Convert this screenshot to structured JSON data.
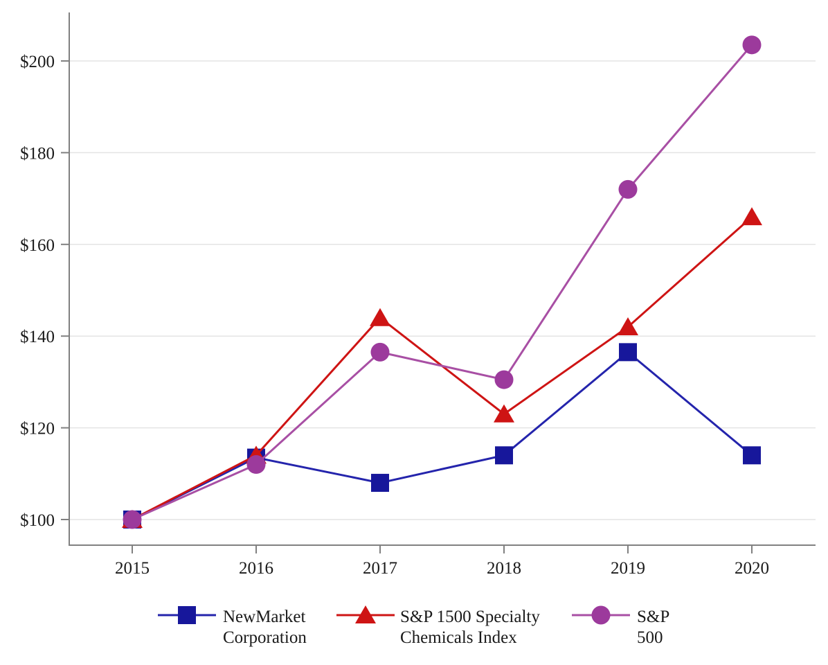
{
  "chart_data": {
    "type": "line",
    "title": "",
    "x_labels": [
      "2015",
      "2016",
      "2017",
      "2018",
      "2019",
      "2020"
    ],
    "y_ticks": [
      100,
      120,
      140,
      160,
      180,
      200
    ],
    "y_tick_labels": [
      "$100",
      "$120",
      "$140",
      "$160",
      "$180",
      "$200"
    ],
    "ylim": [
      94,
      211
    ],
    "grid": true,
    "legend_position": "bottom",
    "series": [
      {
        "name": "NewMarket Corporation",
        "legend_lines": [
          "NewMarket",
          "Corporation"
        ],
        "marker": "square",
        "marker_color": "#17179B",
        "line_color": "#2424AC",
        "values": [
          100,
          113.5,
          108,
          114,
          136.5,
          114
        ]
      },
      {
        "name": "S&P 1500 Specialty Chemicals Index",
        "legend_lines": [
          "S&P 1500 Specialty",
          "Chemicals Index"
        ],
        "marker": "triangle",
        "marker_color": "#CE1414",
        "line_color": "#CE1414",
        "values": [
          100,
          114,
          144,
          123,
          142,
          166
        ]
      },
      {
        "name": "S&P 500",
        "legend_lines": [
          "S&P",
          "500"
        ],
        "marker": "circle",
        "marker_color": "#9C3A9C",
        "line_color": "#A84FA4",
        "values": [
          100,
          112,
          136.5,
          130.5,
          172,
          203.5
        ]
      }
    ]
  },
  "style_colors": {
    "axis": "#808080",
    "gridline": "#E4E4E4",
    "text": "#1a1a1a",
    "background": "#ffffff"
  }
}
